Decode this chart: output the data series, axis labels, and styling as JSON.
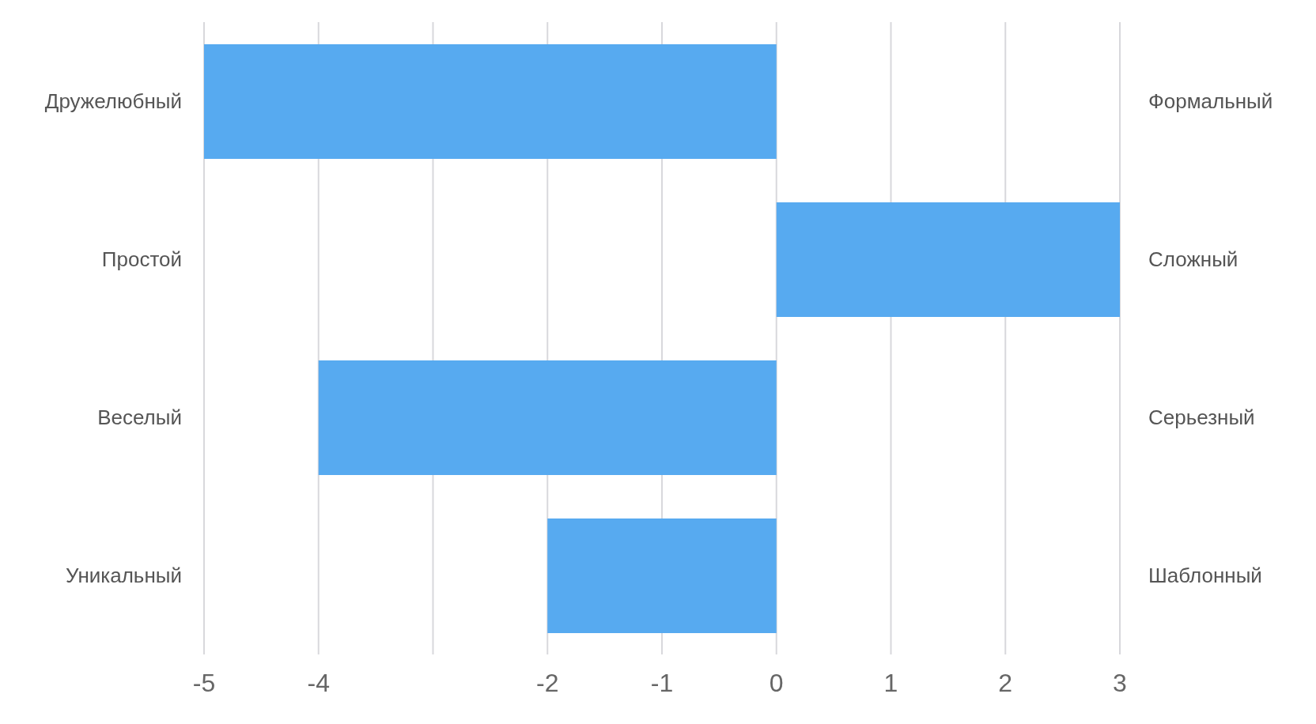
{
  "chart_data": {
    "type": "bar",
    "orientation": "horizontal",
    "categories": [
      "Дружелюбный",
      "Простой",
      "Веселый",
      "Уникальный"
    ],
    "y2_categories": [
      "Формальный",
      "Сложный",
      "Серьезный",
      "Шаблонный"
    ],
    "values": [
      -5,
      3,
      -4,
      -2
    ],
    "color": "#57aaf0",
    "xlim": [
      -5,
      3
    ],
    "xticks": [
      -5,
      -4,
      {
        "value": -3,
        "label": null
      },
      -2,
      -1,
      0,
      1,
      2,
      3
    ],
    "grid": "x"
  }
}
